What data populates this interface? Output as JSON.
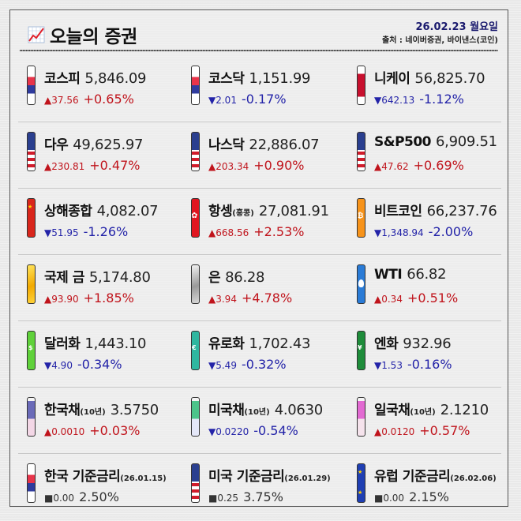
{
  "header": {
    "title": "오늘의 증권",
    "date": "26.02.23 월요일",
    "source": "출처 : 네이버증권, 바이낸스(코인)"
  },
  "colors": {
    "up": "#c0141c",
    "down": "#2323a8",
    "flat": "#333333",
    "date": "#1a1a6e"
  },
  "rows": [
    {
      "items": [
        {
          "name": "코스피",
          "sub": "",
          "value": "5,846.09",
          "change": "▲37.56",
          "pct": "+0.65%",
          "dir": "up",
          "icon": "korea-flag-icon",
          "flag": "f-kr"
        },
        {
          "name": "코스닥",
          "sub": "",
          "value": "1,151.99",
          "change": "▼2.01",
          "pct": "-0.17%",
          "dir": "down",
          "icon": "korea-flag-icon",
          "flag": "f-kr"
        },
        {
          "name": "니케이",
          "sub": "",
          "value": "56,825.70",
          "change": "▼642.13",
          "pct": "-1.12%",
          "dir": "down",
          "icon": "japan-flag-icon",
          "flag": "f-jp"
        }
      ]
    },
    {
      "items": [
        {
          "name": "다우",
          "sub": "",
          "value": "49,625.97",
          "change": "▲230.81",
          "pct": "+0.47%",
          "dir": "up",
          "icon": "us-flag-icon",
          "flag": "f-us"
        },
        {
          "name": "나스닥",
          "sub": "",
          "value": "22,886.07",
          "change": "▲203.34",
          "pct": "+0.90%",
          "dir": "up",
          "icon": "us-flag-icon",
          "flag": "f-us"
        },
        {
          "name": "S&P500",
          "sub": "",
          "value": "6,909.51",
          "change": "▲47.62",
          "pct": "+0.69%",
          "dir": "up",
          "icon": "us-flag-icon",
          "flag": "f-us"
        }
      ]
    },
    {
      "items": [
        {
          "name": "상해종합",
          "sub": "",
          "value": "4,082.07",
          "change": "▼51.95",
          "pct": "-1.26%",
          "dir": "down",
          "icon": "china-flag-icon",
          "flag": "f-cn"
        },
        {
          "name": "항셍",
          "sub": "(홍콩)",
          "value": "27,081.91",
          "change": "▲668.56",
          "pct": "+2.53%",
          "dir": "up",
          "icon": "hongkong-flag-icon",
          "flag": "f-hk"
        },
        {
          "name": "비트코인",
          "sub": "",
          "value": "66,237.76",
          "change": "▼1,348.94",
          "pct": "-2.00%",
          "dir": "down",
          "icon": "bitcoin-icon",
          "flag": "f-btc"
        }
      ]
    },
    {
      "items": [
        {
          "name": "국제 금",
          "sub": "",
          "value": "5,174.80",
          "change": "▲93.90",
          "pct": "+1.85%",
          "dir": "up",
          "icon": "gold-bar-icon",
          "flag": "f-gold"
        },
        {
          "name": "은",
          "sub": "",
          "value": "86.28",
          "change": "▲3.94",
          "pct": "+4.78%",
          "dir": "up",
          "icon": "silver-bar-icon",
          "flag": "f-silver"
        },
        {
          "name": "WTI",
          "sub": "",
          "value": "66.82",
          "change": "▲0.34",
          "pct": "+0.51%",
          "dir": "up",
          "icon": "oil-drop-icon",
          "flag": "f-oil"
        }
      ]
    },
    {
      "items": [
        {
          "name": "달러화",
          "sub": "",
          "value": "1,443.10",
          "change": "▼4.90",
          "pct": "-0.34%",
          "dir": "down",
          "icon": "dollar-bill-icon",
          "flag": "f-usd"
        },
        {
          "name": "유로화",
          "sub": "",
          "value": "1,702.43",
          "change": "▼5.49",
          "pct": "-0.32%",
          "dir": "down",
          "icon": "euro-bill-icon",
          "flag": "f-eur"
        },
        {
          "name": "엔화",
          "sub": "",
          "value": "932.96",
          "change": "▼1.53",
          "pct": "-0.16%",
          "dir": "down",
          "icon": "yen-bill-icon",
          "flag": "f-jpy"
        }
      ]
    },
    {
      "items": [
        {
          "name": "한국채",
          "sub": "(10년)",
          "value": "3.5750",
          "change": "▲0.0010",
          "pct": "+0.03%",
          "dir": "up",
          "icon": "korea-bond-icon",
          "flag": "f-krb"
        },
        {
          "name": "미국채",
          "sub": "(10년)",
          "value": "4.0630",
          "change": "▼0.0220",
          "pct": "-0.54%",
          "dir": "down",
          "icon": "us-bond-icon",
          "flag": "f-usb"
        },
        {
          "name": "일국채",
          "sub": "(10년)",
          "value": "2.1210",
          "change": "▲0.0120",
          "pct": "+0.57%",
          "dir": "up",
          "icon": "japan-bond-icon",
          "flag": "f-jpb"
        }
      ]
    },
    {
      "items": [
        {
          "name": "한국 기준금리",
          "sub": "(26.01.15)",
          "value": "",
          "change": "■0.00",
          "pct": "2.50%",
          "dir": "flat",
          "icon": "korea-flag-icon",
          "flag": "f-kr"
        },
        {
          "name": "미국 기준금리",
          "sub": "(26.01.29)",
          "value": "",
          "change": "■0.25",
          "pct": "3.75%",
          "dir": "flat",
          "icon": "us-flag-icon",
          "flag": "f-us"
        },
        {
          "name": "유럽 기준금리",
          "sub": "(26.02.06)",
          "value": "",
          "change": "■0.00",
          "pct": "2.15%",
          "dir": "flat",
          "icon": "eu-flag-icon",
          "flag": "f-eu"
        }
      ]
    }
  ]
}
